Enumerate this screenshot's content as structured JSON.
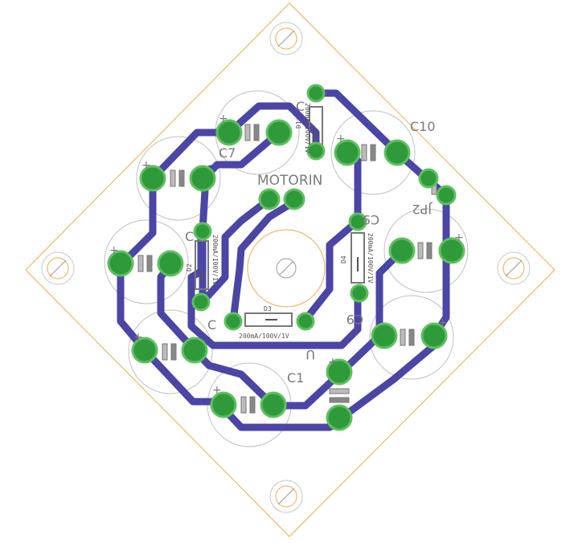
{
  "colors": {
    "outline": "#f2a94a",
    "trace": "#4b45a6",
    "pad": "#2f9a3a",
    "pad_light": "#5fbf5f",
    "silk": "#8a8a8a",
    "courtyard": "#c8c8c8",
    "hole_ring": "#f2a94a"
  },
  "labels": {
    "c10": "C10",
    "c7": "C7",
    "motorin": "MOTORIN",
    "jp2": "JP2",
    "c1": "C1",
    "c_left": "C",
    "c_lower": "C",
    "c_top": "C",
    "c9": "C9",
    "d3": "D3",
    "d3_value": "200mA/100V/1V",
    "d_top_value": "200mA/100V/1V",
    "d_right_value": "200mA/100V/1V",
    "d_left_value": "200mA/100V/1V",
    "plus": "+",
    "small_marks": [
      "D1",
      "D2",
      "D4",
      "D5"
    ],
    "u_mark": "U"
  }
}
